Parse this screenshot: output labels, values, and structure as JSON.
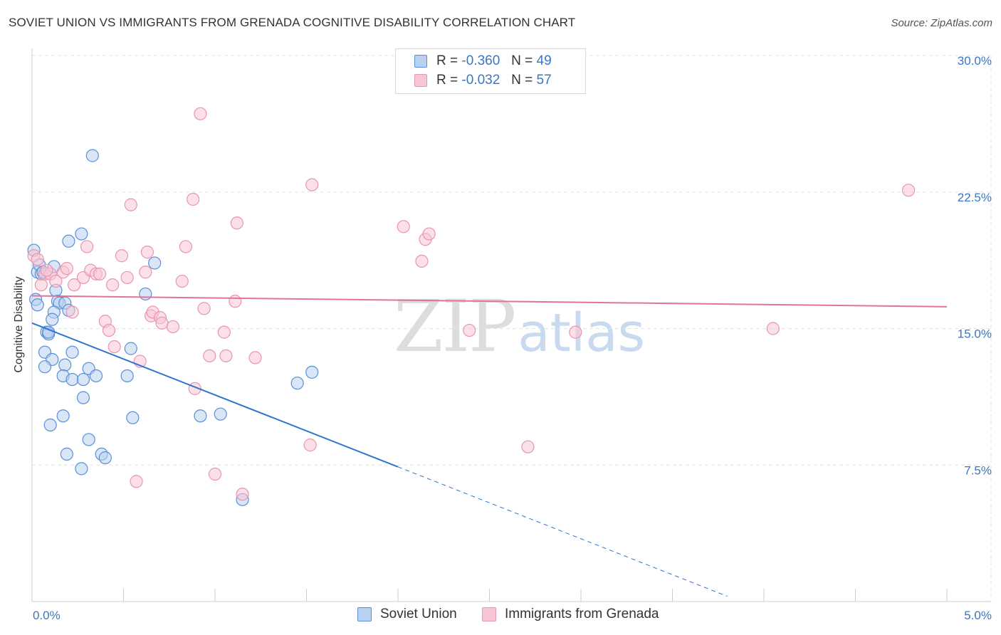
{
  "title": "SOVIET UNION VS IMMIGRANTS FROM GRENADA COGNITIVE DISABILITY CORRELATION CHART",
  "source": "Source: ZipAtlas.com",
  "watermark": {
    "zip": "ZIP",
    "atlas": "atlas"
  },
  "colors": {
    "blue_fill": "#b8d1f0",
    "blue_stroke": "#5b8fd4",
    "blue_line": "#2f74d0",
    "pink_fill": "#f7c6d5",
    "pink_stroke": "#e895b0",
    "pink_line": "#e0739a",
    "axis_label": "#3a76c4",
    "grid": "#e3e3e3"
  },
  "stats": [
    {
      "r_label": "R =",
      "r_value": "-0.360",
      "n_label": "N =",
      "n_value": "49"
    },
    {
      "r_label": "R =",
      "r_value": "-0.032",
      "n_label": "N =",
      "n_value": "57"
    }
  ],
  "legend": [
    {
      "label": "Soviet Union"
    },
    {
      "label": "Immigrants from Grenada"
    }
  ],
  "chart_data": {
    "type": "scatter",
    "title": "SOVIET UNION VS IMMIGRANTS FROM GRENADA COGNITIVE DISABILITY CORRELATION CHART",
    "xlabel": "",
    "ylabel": "Cognitive Disability",
    "xlim": [
      0,
      5.0
    ],
    "ylim": [
      0,
      30.0
    ],
    "x_tick_labels": [
      "0.0%",
      "5.0%"
    ],
    "y_ticks": [
      7.5,
      15.0,
      22.5,
      30.0
    ],
    "y_tick_labels": [
      "7.5%",
      "15.0%",
      "22.5%",
      "30.0%"
    ],
    "grid": true,
    "legend_position": "bottom",
    "series": [
      {
        "name": "Soviet Union",
        "r": -0.36,
        "n": 49,
        "trend": {
          "x0": 0.0,
          "y0": 15.3,
          "x1": 2.0,
          "y1": 7.4,
          "dash_to_x": 3.8
        },
        "points": [
          [
            0.01,
            19.3
          ],
          [
            0.03,
            18.1
          ],
          [
            0.04,
            18.5
          ],
          [
            0.05,
            18.0
          ],
          [
            0.06,
            18.1
          ],
          [
            0.02,
            16.6
          ],
          [
            0.03,
            16.3
          ],
          [
            0.12,
            18.4
          ],
          [
            0.13,
            17.1
          ],
          [
            0.14,
            16.5
          ],
          [
            0.15,
            16.4
          ],
          [
            0.18,
            16.4
          ],
          [
            0.2,
            19.8
          ],
          [
            0.27,
            20.2
          ],
          [
            0.33,
            24.5
          ],
          [
            0.12,
            15.9
          ],
          [
            0.11,
            15.5
          ],
          [
            0.08,
            14.8
          ],
          [
            0.09,
            14.7
          ],
          [
            0.07,
            13.7
          ],
          [
            0.11,
            13.3
          ],
          [
            0.07,
            12.9
          ],
          [
            0.18,
            13.0
          ],
          [
            0.22,
            13.7
          ],
          [
            0.17,
            12.4
          ],
          [
            0.22,
            12.2
          ],
          [
            0.28,
            12.2
          ],
          [
            0.31,
            12.8
          ],
          [
            0.35,
            12.4
          ],
          [
            0.52,
            12.4
          ],
          [
            0.54,
            13.9
          ],
          [
            0.62,
            16.9
          ],
          [
            0.67,
            18.6
          ],
          [
            0.28,
            11.2
          ],
          [
            0.17,
            10.2
          ],
          [
            0.1,
            9.7
          ],
          [
            0.31,
            8.9
          ],
          [
            0.19,
            8.1
          ],
          [
            0.38,
            8.1
          ],
          [
            0.4,
            7.9
          ],
          [
            0.27,
            7.3
          ],
          [
            0.55,
            10.1
          ],
          [
            0.92,
            10.2
          ],
          [
            1.03,
            10.3
          ],
          [
            1.15,
            5.6
          ],
          [
            1.45,
            12.0
          ],
          [
            1.53,
            12.6
          ],
          [
            0.2,
            16.0
          ],
          [
            0.09,
            14.8
          ]
        ]
      },
      {
        "name": "Immigrants from Grenada",
        "r": -0.032,
        "n": 57,
        "trend": {
          "x0": 0.0,
          "y0": 16.8,
          "x1": 5.0,
          "y1": 16.2
        },
        "points": [
          [
            0.01,
            19.0
          ],
          [
            0.03,
            18.8
          ],
          [
            0.05,
            17.4
          ],
          [
            0.07,
            18.0
          ],
          [
            0.1,
            18.0
          ],
          [
            0.13,
            17.6
          ],
          [
            0.17,
            18.1
          ],
          [
            0.19,
            18.3
          ],
          [
            0.22,
            15.9
          ],
          [
            0.23,
            17.4
          ],
          [
            0.28,
            17.8
          ],
          [
            0.3,
            19.5
          ],
          [
            0.32,
            18.2
          ],
          [
            0.35,
            18.0
          ],
          [
            0.37,
            18.0
          ],
          [
            0.4,
            15.4
          ],
          [
            0.42,
            14.9
          ],
          [
            0.44,
            17.4
          ],
          [
            0.45,
            14.0
          ],
          [
            0.49,
            19.0
          ],
          [
            0.52,
            17.8
          ],
          [
            0.54,
            21.8
          ],
          [
            0.59,
            13.2
          ],
          [
            0.62,
            18.1
          ],
          [
            0.63,
            19.2
          ],
          [
            0.65,
            15.7
          ],
          [
            0.66,
            15.9
          ],
          [
            0.7,
            15.6
          ],
          [
            0.71,
            15.3
          ],
          [
            0.77,
            15.1
          ],
          [
            0.82,
            17.6
          ],
          [
            0.84,
            19.5
          ],
          [
            0.88,
            22.1
          ],
          [
            0.89,
            11.7
          ],
          [
            0.94,
            16.1
          ],
          [
            0.97,
            13.5
          ],
          [
            0.92,
            26.8
          ],
          [
            1.05,
            14.8
          ],
          [
            1.06,
            13.5
          ],
          [
            1.11,
            16.5
          ],
          [
            1.12,
            20.8
          ],
          [
            1.22,
            13.4
          ],
          [
            1.0,
            7.0
          ],
          [
            1.15,
            5.9
          ],
          [
            0.57,
            6.6
          ],
          [
            1.52,
            8.6
          ],
          [
            1.53,
            22.9
          ],
          [
            2.03,
            20.6
          ],
          [
            2.13,
            18.7
          ],
          [
            2.15,
            19.9
          ],
          [
            2.17,
            20.2
          ],
          [
            2.39,
            14.9
          ],
          [
            2.71,
            8.5
          ],
          [
            2.97,
            14.8
          ],
          [
            4.05,
            15.0
          ],
          [
            4.79,
            22.6
          ],
          [
            0.08,
            18.2
          ]
        ]
      }
    ]
  }
}
